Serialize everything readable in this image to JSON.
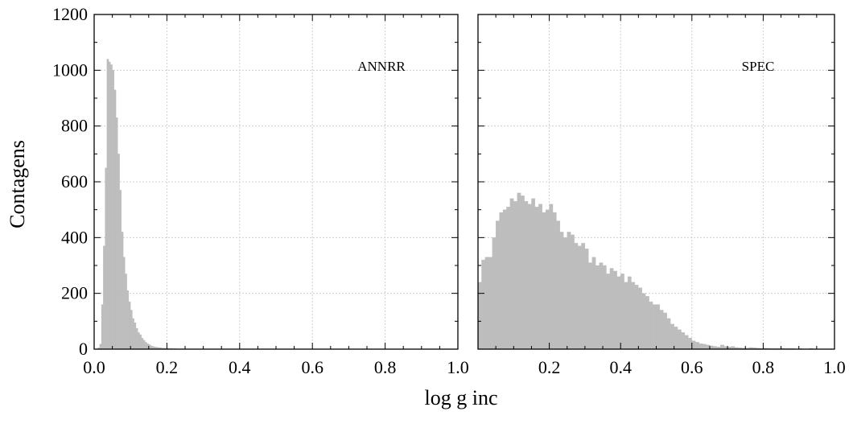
{
  "chart_data": {
    "type": "histogram",
    "ylabel": "Contagens",
    "xlabel": "log g inc",
    "ylim": [
      0,
      1200
    ],
    "yticks": [
      0,
      200,
      400,
      600,
      800,
      1000,
      1200
    ],
    "ytick_labels": [
      "0",
      "200",
      "400",
      "600",
      "800",
      "1000",
      "1200"
    ],
    "grid": true,
    "bar_color": "#bdbdbd",
    "panels": [
      {
        "label": "ANNRR",
        "xlim": [
          0,
          1
        ],
        "xticks": [
          0,
          0.2,
          0.4,
          0.6,
          0.8,
          1.0
        ],
        "xtick_labels": [
          "0.0",
          "0.2",
          "0.4",
          "0.6",
          "0.8",
          "1.0"
        ],
        "bin_width": 0.005,
        "bins": [
          [
            0.01,
            5
          ],
          [
            0.015,
            18
          ],
          [
            0.02,
            160
          ],
          [
            0.025,
            370
          ],
          [
            0.03,
            650
          ],
          [
            0.035,
            1040
          ],
          [
            0.04,
            1030
          ],
          [
            0.045,
            1020
          ],
          [
            0.05,
            1000
          ],
          [
            0.055,
            930
          ],
          [
            0.06,
            830
          ],
          [
            0.065,
            700
          ],
          [
            0.07,
            570
          ],
          [
            0.075,
            420
          ],
          [
            0.08,
            330
          ],
          [
            0.085,
            270
          ],
          [
            0.09,
            210
          ],
          [
            0.095,
            170
          ],
          [
            0.1,
            140
          ],
          [
            0.105,
            110
          ],
          [
            0.11,
            95
          ],
          [
            0.115,
            75
          ],
          [
            0.12,
            60
          ],
          [
            0.125,
            52
          ],
          [
            0.13,
            40
          ],
          [
            0.135,
            32
          ],
          [
            0.14,
            25
          ],
          [
            0.145,
            20
          ],
          [
            0.15,
            16
          ],
          [
            0.155,
            12
          ],
          [
            0.16,
            10
          ],
          [
            0.165,
            8
          ],
          [
            0.17,
            7
          ],
          [
            0.175,
            6
          ],
          [
            0.18,
            5
          ],
          [
            0.185,
            4
          ],
          [
            0.19,
            4
          ],
          [
            0.195,
            3
          ],
          [
            0.2,
            3
          ],
          [
            0.205,
            2
          ],
          [
            0.21,
            2
          ],
          [
            0.22,
            2
          ],
          [
            0.23,
            1
          ],
          [
            0.24,
            1
          ],
          [
            0.25,
            1
          ]
        ]
      },
      {
        "label": "SPEC",
        "xlim": [
          0,
          1
        ],
        "xticks": [
          0.2,
          0.4,
          0.6,
          0.8,
          1.0
        ],
        "xtick_labels": [
          "0.2",
          "0.4",
          "0.6",
          "0.8",
          "1.0"
        ],
        "bin_width": 0.01,
        "bins": [
          [
            0.0,
            240
          ],
          [
            0.01,
            320
          ],
          [
            0.02,
            330
          ],
          [
            0.03,
            330
          ],
          [
            0.04,
            400
          ],
          [
            0.05,
            460
          ],
          [
            0.06,
            490
          ],
          [
            0.07,
            500
          ],
          [
            0.08,
            510
          ],
          [
            0.09,
            540
          ],
          [
            0.1,
            530
          ],
          [
            0.11,
            560
          ],
          [
            0.12,
            550
          ],
          [
            0.13,
            530
          ],
          [
            0.14,
            520
          ],
          [
            0.15,
            540
          ],
          [
            0.16,
            510
          ],
          [
            0.17,
            520
          ],
          [
            0.18,
            490
          ],
          [
            0.19,
            500
          ],
          [
            0.2,
            520
          ],
          [
            0.21,
            490
          ],
          [
            0.22,
            460
          ],
          [
            0.23,
            420
          ],
          [
            0.24,
            400
          ],
          [
            0.25,
            420
          ],
          [
            0.26,
            410
          ],
          [
            0.27,
            380
          ],
          [
            0.28,
            370
          ],
          [
            0.29,
            380
          ],
          [
            0.3,
            360
          ],
          [
            0.31,
            310
          ],
          [
            0.32,
            330
          ],
          [
            0.33,
            300
          ],
          [
            0.34,
            310
          ],
          [
            0.35,
            300
          ],
          [
            0.36,
            270
          ],
          [
            0.37,
            290
          ],
          [
            0.38,
            280
          ],
          [
            0.39,
            260
          ],
          [
            0.4,
            270
          ],
          [
            0.41,
            240
          ],
          [
            0.42,
            260
          ],
          [
            0.43,
            240
          ],
          [
            0.44,
            230
          ],
          [
            0.45,
            220
          ],
          [
            0.46,
            200
          ],
          [
            0.47,
            190
          ],
          [
            0.48,
            170
          ],
          [
            0.49,
            160
          ],
          [
            0.5,
            160
          ],
          [
            0.51,
            140
          ],
          [
            0.52,
            130
          ],
          [
            0.53,
            110
          ],
          [
            0.54,
            90
          ],
          [
            0.55,
            80
          ],
          [
            0.56,
            70
          ],
          [
            0.57,
            60
          ],
          [
            0.58,
            50
          ],
          [
            0.59,
            40
          ],
          [
            0.6,
            30
          ],
          [
            0.61,
            25
          ],
          [
            0.62,
            20
          ],
          [
            0.63,
            18
          ],
          [
            0.64,
            15
          ],
          [
            0.65,
            12
          ],
          [
            0.66,
            10
          ],
          [
            0.67,
            8
          ],
          [
            0.68,
            15
          ],
          [
            0.69,
            10
          ],
          [
            0.7,
            8
          ],
          [
            0.71,
            10
          ],
          [
            0.72,
            6
          ],
          [
            0.73,
            5
          ],
          [
            0.74,
            4
          ],
          [
            0.75,
            4
          ],
          [
            0.76,
            6
          ],
          [
            0.77,
            5
          ],
          [
            0.78,
            4
          ],
          [
            0.79,
            3
          ],
          [
            0.8,
            4
          ],
          [
            0.81,
            3
          ],
          [
            0.82,
            2
          ],
          [
            0.83,
            2
          ],
          [
            0.84,
            2
          ],
          [
            0.85,
            3
          ],
          [
            0.86,
            2
          ],
          [
            0.87,
            2
          ],
          [
            0.88,
            2
          ],
          [
            0.89,
            1
          ],
          [
            0.9,
            2
          ],
          [
            0.91,
            1
          ],
          [
            0.92,
            1
          ],
          [
            0.93,
            3
          ],
          [
            0.94,
            1
          ],
          [
            0.95,
            1
          ],
          [
            0.96,
            1
          ],
          [
            0.97,
            1
          ],
          [
            0.98,
            1
          ],
          [
            0.99,
            1
          ]
        ]
      }
    ]
  }
}
